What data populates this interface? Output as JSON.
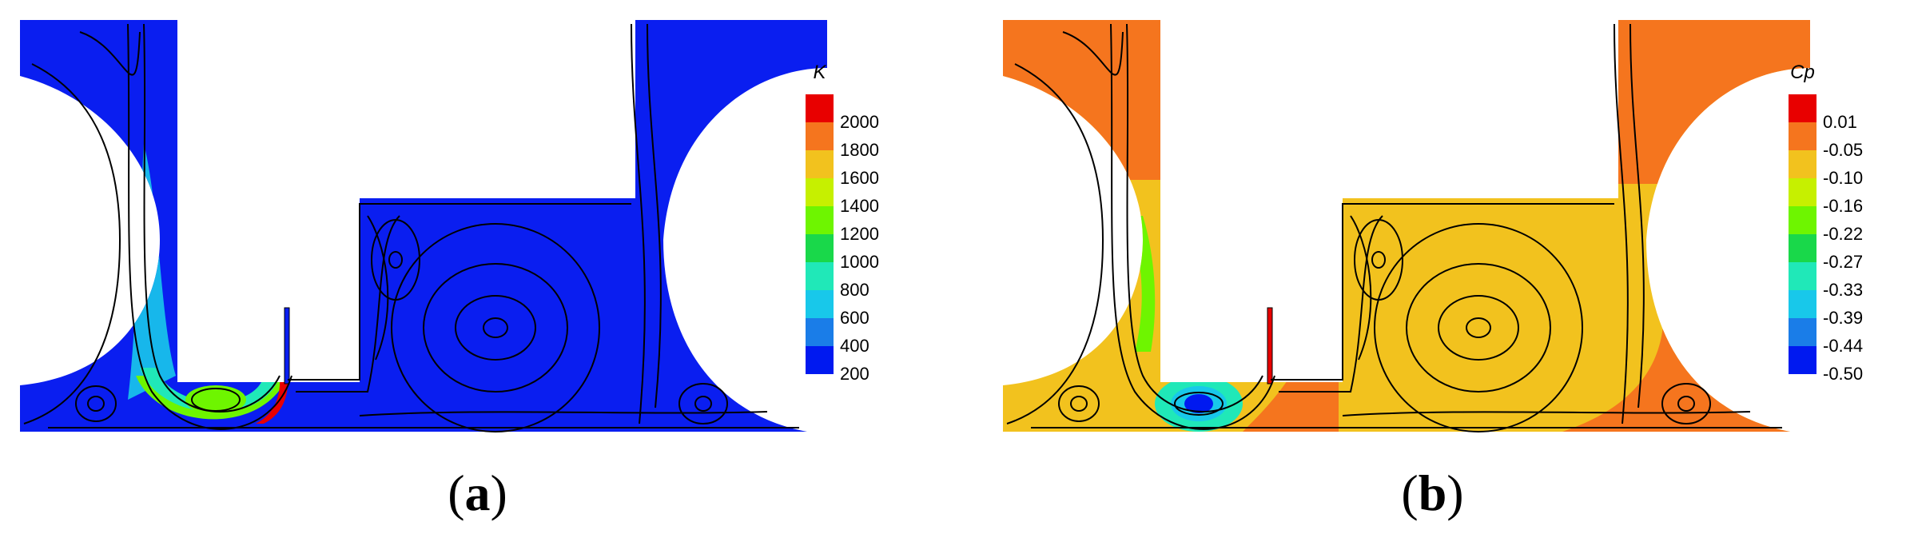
{
  "panels": [
    {
      "id": "a",
      "caption_letter": "a",
      "colorbar": {
        "title": "K",
        "ticks": [
          "2000",
          "1800",
          "1600",
          "1400",
          "1200",
          "1000",
          "800",
          "600",
          "400",
          "200"
        ]
      }
    },
    {
      "id": "b",
      "caption_letter": "b",
      "colorbar": {
        "title": "Cp",
        "ticks": [
          "0.01",
          "-0.05",
          "-0.10",
          "-0.16",
          "-0.22",
          "-0.27",
          "-0.33",
          "-0.39",
          "-0.44",
          "-0.50"
        ]
      }
    }
  ],
  "colors": {
    "scale": [
      "#e80000",
      "#f5751e",
      "#f2c21e",
      "#c6f000",
      "#6ef500",
      "#19d84a",
      "#20e8b8",
      "#18c8ea",
      "#1a7de8",
      "#0019f0"
    ],
    "panel_a_background": "#0a1ef0",
    "panel_b_background": "#f2c21e",
    "panel_b_high": "#f5751e"
  }
}
